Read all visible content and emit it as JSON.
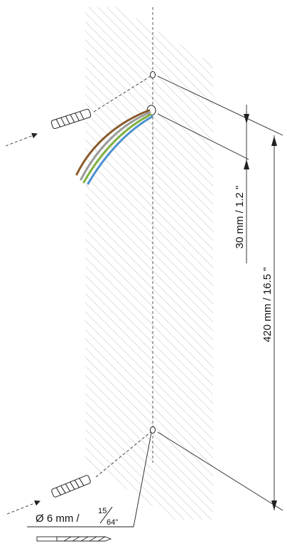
{
  "dimensions": {
    "cable_offset": "30 mm / 1.2 \"",
    "hole_spacing": "420 mm / 16.5 \""
  },
  "drill": {
    "diameter_prefix": "Ø 6 mm /",
    "fraction_numerator": "15",
    "fraction_denominator": "64\""
  },
  "colors": {
    "wall_hatch": "#c8c8c8",
    "line": "#222222",
    "wire_brown": "#8a5a2b",
    "wire_green": "#7fb241",
    "wire_blue": "#4a8fd1",
    "wire_gray": "#9a9a9a"
  }
}
